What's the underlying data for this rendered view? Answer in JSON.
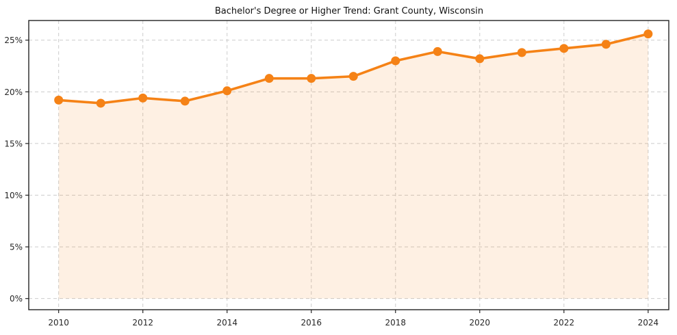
{
  "chart_data": {
    "type": "line",
    "title": "Bachelor's Degree or Higher Trend: Grant County, Wisconsin",
    "x": [
      2010,
      2011,
      2012,
      2013,
      2014,
      2015,
      2016,
      2017,
      2018,
      2019,
      2020,
      2021,
      2022,
      2023,
      2024
    ],
    "values": [
      19.2,
      18.9,
      19.4,
      19.1,
      20.1,
      21.3,
      21.3,
      21.5,
      23.0,
      23.9,
      23.2,
      23.8,
      24.2,
      24.6,
      25.6
    ],
    "unit": "%",
    "xlabel": "",
    "ylabel": "",
    "x_ticks": [
      2010,
      2012,
      2014,
      2016,
      2018,
      2020,
      2022,
      2024
    ],
    "x_tick_labels": [
      "2010",
      "2012",
      "2014",
      "2016",
      "2018",
      "2020",
      "2022",
      "2024"
    ],
    "y_ticks": [
      0,
      5,
      10,
      15,
      20,
      25
    ],
    "y_tick_labels": [
      "0%",
      "5%",
      "10%",
      "15%",
      "20%",
      "25%"
    ],
    "xlim": [
      2009.29,
      2024.49
    ],
    "ylim": [
      -1.08,
      26.9
    ],
    "area_baseline": 0,
    "grid": true,
    "grid_style": "dashed",
    "legend_position": "none",
    "marker": "circle",
    "colors": {
      "line": "#f58216",
      "area_fill_effective": "#fdf0e4",
      "area_opacity": 0.12,
      "grid": "#cccccc",
      "frame": "#222222",
      "tick_text": "#262626",
      "title_text": "#111111",
      "background": "#ffffff"
    }
  }
}
